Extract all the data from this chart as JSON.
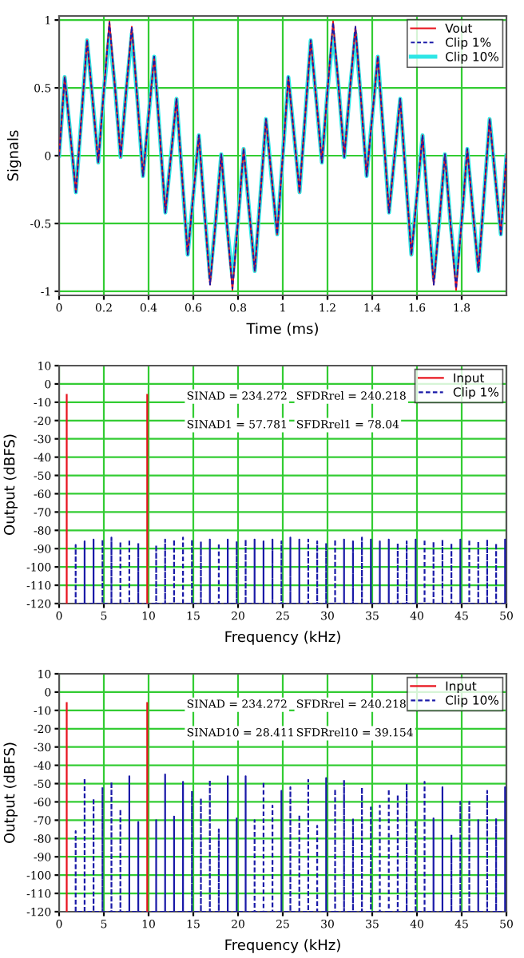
{
  "chart_data": [
    {
      "type": "line",
      "xlabel": "Time (ms)",
      "ylabel": "Signals",
      "xlim": [
        0,
        2
      ],
      "xticks": [
        0,
        0.2,
        0.4,
        0.6,
        0.8,
        1,
        1.2,
        1.4,
        1.6,
        1.8
      ],
      "ylim": [
        -1.03,
        1.03
      ],
      "yticks": [
        -1,
        -0.5,
        0,
        0.5,
        1
      ],
      "grid": true,
      "legend": "top right",
      "x": [
        0,
        0.025,
        0.05,
        0.075,
        0.1,
        0.125,
        0.15,
        0.175,
        0.2,
        0.225,
        0.25,
        0.275,
        0.3,
        0.325,
        0.35,
        0.375,
        0.4,
        0.425,
        0.45,
        0.475,
        0.5,
        0.525,
        0.55,
        0.575,
        0.6,
        0.625,
        0.65,
        0.675,
        0.7,
        0.725,
        0.75,
        0.775,
        0.8,
        0.825,
        0.85,
        0.875,
        0.9,
        0.925,
        0.95,
        0.975,
        1,
        1.025,
        1.05,
        1.075,
        1.1,
        1.125,
        1.15,
        1.175,
        1.2,
        1.225,
        1.25,
        1.275,
        1.3,
        1.325,
        1.35,
        1.375,
        1.4,
        1.425,
        1.45,
        1.475,
        1.5,
        1.525,
        1.55,
        1.575,
        1.6,
        1.625,
        1.65,
        1.675,
        1.7,
        1.725,
        1.75,
        1.775,
        1.8,
        1.825,
        1.85,
        1.875,
        1.9,
        1.925,
        1.95,
        1.975,
        2
      ],
      "series": [
        {
          "name": "Vout",
          "color": "#e8141e",
          "line_style": "solid",
          "values": [
            0,
            0.58,
            0.16,
            -0.27,
            0.29,
            0.85,
            0.41,
            -0.05,
            0.48,
            0.99,
            0.5,
            -0.01,
            0.48,
            0.95,
            0.41,
            -0.15,
            0.29,
            0.73,
            0.16,
            -0.42,
            0,
            0.42,
            -0.16,
            -0.73,
            -0.29,
            0.15,
            -0.41,
            -0.95,
            -0.48,
            0.01,
            -0.5,
            -0.99,
            -0.48,
            0.05,
            -0.41,
            -0.85,
            -0.29,
            0.27,
            -0.16,
            -0.58,
            0,
            0.58,
            0.16,
            -0.27,
            0.29,
            0.85,
            0.41,
            -0.05,
            0.48,
            0.99,
            0.5,
            -0.01,
            0.48,
            0.95,
            0.41,
            -0.15,
            0.29,
            0.73,
            0.16,
            -0.42,
            0,
            0.42,
            -0.16,
            -0.73,
            -0.29,
            0.15,
            -0.41,
            -0.95,
            -0.48,
            0.01,
            -0.5,
            -0.99,
            -0.48,
            0.05,
            -0.41,
            -0.85,
            -0.29,
            0.27,
            -0.16,
            -0.58,
            0
          ]
        },
        {
          "name": "Clip 1%",
          "color": "#1a1aa8",
          "line_style": "dashed",
          "values": [
            0,
            0.58,
            0.16,
            -0.27,
            0.29,
            0.85,
            0.41,
            -0.05,
            0.48,
            0.98,
            0.5,
            -0.01,
            0.48,
            0.95,
            0.41,
            -0.15,
            0.29,
            0.73,
            0.16,
            -0.42,
            0,
            0.42,
            -0.16,
            -0.73,
            -0.29,
            0.15,
            -0.41,
            -0.95,
            -0.48,
            0.01,
            -0.5,
            -0.98,
            -0.48,
            0.05,
            -0.41,
            -0.85,
            -0.29,
            0.27,
            -0.16,
            -0.58,
            0,
            0.58,
            0.16,
            -0.27,
            0.29,
            0.85,
            0.41,
            -0.05,
            0.48,
            0.98,
            0.5,
            -0.01,
            0.48,
            0.95,
            0.41,
            -0.15,
            0.29,
            0.73,
            0.16,
            -0.42,
            0,
            0.42,
            -0.16,
            -0.73,
            -0.29,
            0.15,
            -0.41,
            -0.95,
            -0.48,
            0.01,
            -0.5,
            -0.98,
            -0.48,
            0.05,
            -0.41,
            -0.85,
            -0.29,
            0.27,
            -0.16,
            -0.58,
            0
          ]
        },
        {
          "name": "Clip 10%",
          "color": "#2ee6e6",
          "line_style": "solid",
          "values": [
            0,
            0.58,
            0.16,
            -0.27,
            0.29,
            0.85,
            0.41,
            -0.05,
            0.48,
            0.9,
            0.5,
            -0.01,
            0.48,
            0.9,
            0.41,
            -0.15,
            0.29,
            0.73,
            0.16,
            -0.42,
            0,
            0.42,
            -0.16,
            -0.73,
            -0.29,
            0.15,
            -0.41,
            -0.9,
            -0.48,
            0.01,
            -0.5,
            -0.9,
            -0.48,
            0.05,
            -0.41,
            -0.85,
            -0.29,
            0.27,
            -0.16,
            -0.58,
            0,
            0.58,
            0.16,
            -0.27,
            0.29,
            0.85,
            0.41,
            -0.05,
            0.48,
            0.9,
            0.5,
            -0.01,
            0.48,
            0.9,
            0.41,
            -0.15,
            0.29,
            0.73,
            0.16,
            -0.42,
            0,
            0.42,
            -0.16,
            -0.73,
            -0.29,
            0.15,
            -0.41,
            -0.9,
            -0.48,
            0.01,
            -0.5,
            -0.9,
            -0.48,
            0.05,
            -0.41,
            -0.85,
            -0.29,
            0.27,
            -0.16,
            -0.58,
            0
          ]
        }
      ]
    },
    {
      "type": "line",
      "xlabel": "Frequency (kHz)",
      "ylabel": "Output (dBFS)",
      "xlim": [
        0,
        50
      ],
      "xticks": [
        0,
        5,
        10,
        15,
        20,
        25,
        30,
        35,
        40,
        45,
        50
      ],
      "ylim": [
        -120,
        10
      ],
      "yticks": [
        -120,
        -110,
        -100,
        -90,
        -80,
        -70,
        -60,
        -50,
        -40,
        -30,
        -20,
        -10,
        0,
        10
      ],
      "grid": true,
      "legend": "top right",
      "annotations": [
        "SINAD = 234.272",
        "SFDRrel = 240.218",
        "SINAD1 = 57.781",
        "SFDRrel1 = 78.04"
      ],
      "series": [
        {
          "name": "Input",
          "color": "#e8141e",
          "line_style": "solid",
          "x": [
            0.85,
            0.85,
            5,
            9.85,
            9.85
          ],
          "values": [
            -120,
            -6,
            null,
            -120,
            -6
          ]
        },
        {
          "name": "Clip 1%",
          "color": "#1a1aa8",
          "line_style": "dashed",
          "x": [
            1.85,
            1.85,
            1.85,
            2.85,
            2.85,
            2.85,
            3.85,
            3.85,
            3.85,
            4.85,
            4.85,
            4.85,
            5.85,
            5.85,
            5.85,
            6.85,
            6.85,
            6.85,
            7.85,
            7.85,
            7.85,
            8.85,
            8.85,
            8.85,
            10.85,
            10.85,
            10.85,
            11.85,
            11.85,
            11.85,
            12.85,
            12.85,
            12.85,
            13.85,
            13.85,
            13.85,
            14.85,
            14.85,
            14.85,
            15.85,
            15.85,
            15.85,
            16.85,
            16.85,
            16.85,
            17.85,
            17.85,
            17.85,
            18.85,
            18.85,
            18.85,
            19.85,
            19.85,
            19.85,
            20.85,
            20.85,
            20.85,
            21.85,
            21.85,
            21.85,
            22.85,
            22.85,
            22.85,
            23.85,
            23.85,
            23.85,
            24.85,
            24.85,
            24.85,
            25.85,
            25.85,
            25.85,
            26.85,
            26.85,
            26.85,
            27.85,
            27.85,
            27.85,
            28.85,
            28.85,
            28.85,
            29.85,
            29.85,
            29.85,
            30.85,
            30.85,
            30.85,
            31.85,
            31.85,
            31.85,
            32.85,
            32.85,
            32.85,
            33.85,
            33.85,
            33.85,
            34.85,
            34.85,
            34.85,
            35.85,
            35.85,
            35.85,
            36.85,
            36.85,
            36.85,
            37.85,
            37.85,
            37.85,
            38.85,
            38.85,
            38.85,
            39.85,
            39.85,
            39.85,
            40.85,
            40.85,
            40.85,
            41.85,
            41.85,
            41.85,
            42.85,
            42.85,
            42.85,
            43.85,
            43.85,
            43.85,
            44.85,
            44.85,
            44.85,
            45.85,
            45.85,
            45.85,
            46.85,
            46.85,
            46.85,
            47.85,
            47.85,
            47.85,
            48.85,
            48.85,
            48.85,
            49.85,
            49.85,
            49.85
          ],
          "values": [
            -120,
            -88,
            -120,
            -120,
            -86,
            -120,
            -120,
            -85,
            -120,
            -120,
            -85,
            -120,
            -120,
            -84,
            -120,
            -120,
            -86,
            -120,
            -120,
            -85,
            -120,
            -120,
            -87,
            -120,
            -120,
            -88,
            -120,
            -120,
            -85,
            -120,
            -120,
            -85,
            -120,
            -120,
            -84,
            -120,
            -120,
            -85,
            -120,
            -120,
            -86,
            -120,
            -120,
            -85,
            -120,
            -120,
            -87,
            -120,
            -120,
            -85,
            -120,
            -120,
            -86,
            -120,
            -120,
            -85,
            -120,
            -120,
            -85,
            -120,
            -120,
            -86,
            -120,
            -120,
            -85,
            -120,
            -120,
            -86,
            -120,
            -120,
            -84,
            -120,
            -120,
            -85,
            -120,
            -120,
            -85,
            -120,
            -120,
            -86,
            -120,
            -120,
            -87,
            -120,
            -120,
            -85,
            -120,
            -120,
            -85,
            -120,
            -120,
            -86,
            -120,
            -120,
            -84,
            -120,
            -120,
            -85,
            -120,
            -120,
            -86,
            -120,
            -120,
            -85,
            -120,
            -120,
            -87,
            -120,
            -120,
            -86,
            -120,
            -120,
            -85,
            -120,
            -120,
            -85,
            -120,
            -120,
            -86,
            -120,
            -120,
            -85,
            -120,
            -120,
            -87,
            -120,
            -120,
            -85,
            -120,
            -120,
            -85,
            -120,
            -120,
            -86,
            -120,
            -120,
            -85,
            -120,
            -120,
            -87,
            -120,
            -120,
            -85,
            -120
          ]
        }
      ]
    },
    {
      "type": "line",
      "xlabel": "Frequency (kHz)",
      "ylabel": "Output (dBFS)",
      "xlim": [
        0,
        50
      ],
      "xticks": [
        0,
        5,
        10,
        15,
        20,
        25,
        30,
        35,
        40,
        45,
        50
      ],
      "ylim": [
        -120,
        10
      ],
      "yticks": [
        -120,
        -110,
        -100,
        -90,
        -80,
        -70,
        -60,
        -50,
        -40,
        -30,
        -20,
        -10,
        0,
        10
      ],
      "grid": true,
      "legend": "top right",
      "annotations": [
        "SINAD = 234.272",
        "SFDRrel = 240.218",
        "SINAD10 = 28.411",
        "SFDRrel10 = 39.154"
      ],
      "series": [
        {
          "name": "Input",
          "color": "#e8141e",
          "line_style": "solid",
          "x": [
            0.85,
            0.85,
            5,
            9.85,
            9.85
          ],
          "values": [
            -120,
            -6,
            null,
            -120,
            -6
          ]
        },
        {
          "name": "Clip 10%",
          "color": "#1a1aa8",
          "line_style": "dashed",
          "x": [
            1.85,
            1.85,
            1.85,
            2.85,
            2.85,
            2.85,
            3.85,
            3.85,
            3.85,
            4.85,
            4.85,
            4.85,
            5.85,
            5.85,
            5.85,
            6.85,
            6.85,
            6.85,
            7.85,
            7.85,
            7.85,
            8.85,
            8.85,
            8.85,
            10.85,
            10.85,
            10.85,
            11.85,
            11.85,
            11.85,
            12.85,
            12.85,
            12.85,
            13.85,
            13.85,
            13.85,
            14.85,
            14.85,
            14.85,
            15.85,
            15.85,
            15.85,
            16.85,
            16.85,
            16.85,
            17.85,
            17.85,
            17.85,
            18.85,
            18.85,
            18.85,
            19.85,
            19.85,
            19.85,
            20.85,
            20.85,
            20.85,
            21.85,
            21.85,
            21.85,
            22.85,
            22.85,
            22.85,
            23.85,
            23.85,
            23.85,
            24.85,
            24.85,
            24.85,
            25.85,
            25.85,
            25.85,
            26.85,
            26.85,
            26.85,
            27.85,
            27.85,
            27.85,
            28.85,
            28.85,
            28.85,
            29.85,
            29.85,
            29.85,
            30.85,
            30.85,
            30.85,
            31.85,
            31.85,
            31.85,
            32.85,
            32.85,
            32.85,
            33.85,
            33.85,
            33.85,
            34.85,
            34.85,
            34.85,
            35.85,
            35.85,
            35.85,
            36.85,
            36.85,
            36.85,
            37.85,
            37.85,
            37.85,
            38.85,
            38.85,
            38.85,
            39.85,
            39.85,
            39.85,
            40.85,
            40.85,
            40.85,
            41.85,
            41.85,
            41.85,
            42.85,
            42.85,
            42.85,
            43.85,
            43.85,
            43.85,
            44.85,
            44.85,
            44.85,
            45.85,
            45.85,
            45.85,
            46.85,
            46.85,
            46.85,
            47.85,
            47.85,
            47.85,
            48.85,
            48.85,
            48.85,
            49.85,
            49.85,
            49.85
          ],
          "values": [
            -120,
            -76,
            -120,
            -120,
            -47,
            -120,
            -120,
            -58,
            -120,
            -120,
            -52,
            -120,
            -120,
            -49,
            -120,
            -120,
            -64,
            -120,
            -120,
            -46,
            -120,
            -120,
            -71,
            -120,
            -120,
            -70,
            -120,
            -120,
            -45,
            -120,
            -120,
            -68,
            -120,
            -120,
            -49,
            -120,
            -120,
            -54,
            -120,
            -120,
            -58,
            -120,
            -120,
            -48,
            -120,
            -120,
            -75,
            -120,
            -120,
            -46,
            -120,
            -120,
            -69,
            -120,
            -120,
            -46,
            -120,
            -120,
            -70,
            -120,
            -120,
            -49,
            -120,
            -120,
            -62,
            -120,
            -120,
            -54,
            -120,
            -120,
            -52,
            -120,
            -120,
            -67,
            -120,
            -120,
            -48,
            -120,
            -120,
            -73,
            -120,
            -120,
            -47,
            -120,
            -120,
            -53,
            -120,
            -120,
            -48,
            -120,
            -120,
            -69,
            -120,
            -120,
            -52,
            -120,
            -120,
            -63,
            -120,
            -120,
            -62,
            -120,
            -120,
            -53,
            -120,
            -120,
            -56,
            -120,
            -120,
            -50,
            -120,
            -120,
            -70,
            -120,
            -120,
            -49,
            -120,
            -120,
            -69,
            -120,
            -120,
            -52,
            -120,
            -120,
            -78,
            -120,
            -120,
            -60,
            -120,
            -120,
            -60,
            -120,
            -120,
            -70,
            -120,
            -120,
            -54,
            -120,
            -120,
            -69,
            -120,
            -120,
            -52,
            -120
          ]
        }
      ]
    }
  ]
}
